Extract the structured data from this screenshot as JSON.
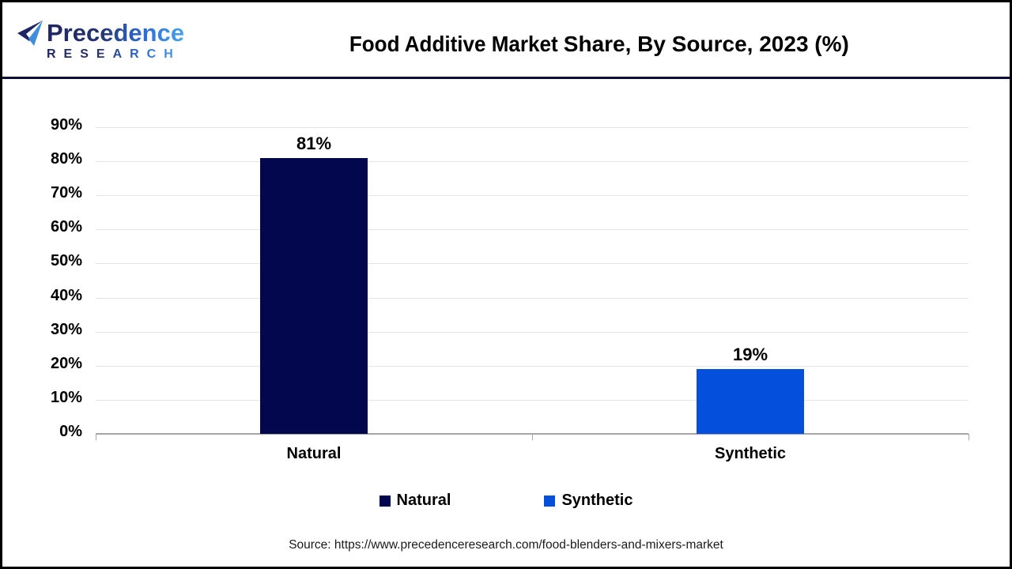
{
  "header": {
    "logo": {
      "line1": "Precedence",
      "line2": "RESEARCH"
    },
    "title_part1": "Food Additive Market",
    "title_part2": "Share, By Source, 2023 (%)"
  },
  "chart_data": {
    "type": "bar",
    "title": "Food Additive Market Share, By Source, 2023 (%)",
    "categories": [
      "Natural",
      "Synthetic"
    ],
    "values": [
      81,
      19
    ],
    "value_labels": [
      "81%",
      "19%"
    ],
    "bar_colors": [
      "#03074e",
      "#0450dc"
    ],
    "xlabel": "",
    "ylabel": "",
    "ylim": [
      0,
      90
    ],
    "ytick_labels": [
      "0%",
      "10%",
      "20%",
      "30%",
      "40%",
      "50%",
      "60%",
      "70%",
      "80%",
      "90%"
    ],
    "grid": true,
    "legend_position": "bottom",
    "legend": [
      {
        "label": "Natural",
        "color": "#03074e"
      },
      {
        "label": "Synthetic",
        "color": "#0450dc"
      }
    ]
  },
  "footer": {
    "source": "Source: https://www.precedenceresearch.com/food-blenders-and-mixers-market"
  },
  "colors": {
    "bar_natural": "#03074e",
    "bar_synthetic": "#0450dc",
    "separator": "#0d0f35",
    "axis_line": "#a6a6a6",
    "gridline": "#e4e4e4",
    "logo_gradient_start": "#1e2464",
    "logo_gradient_end": "#49a5e9",
    "text": "#000000"
  }
}
